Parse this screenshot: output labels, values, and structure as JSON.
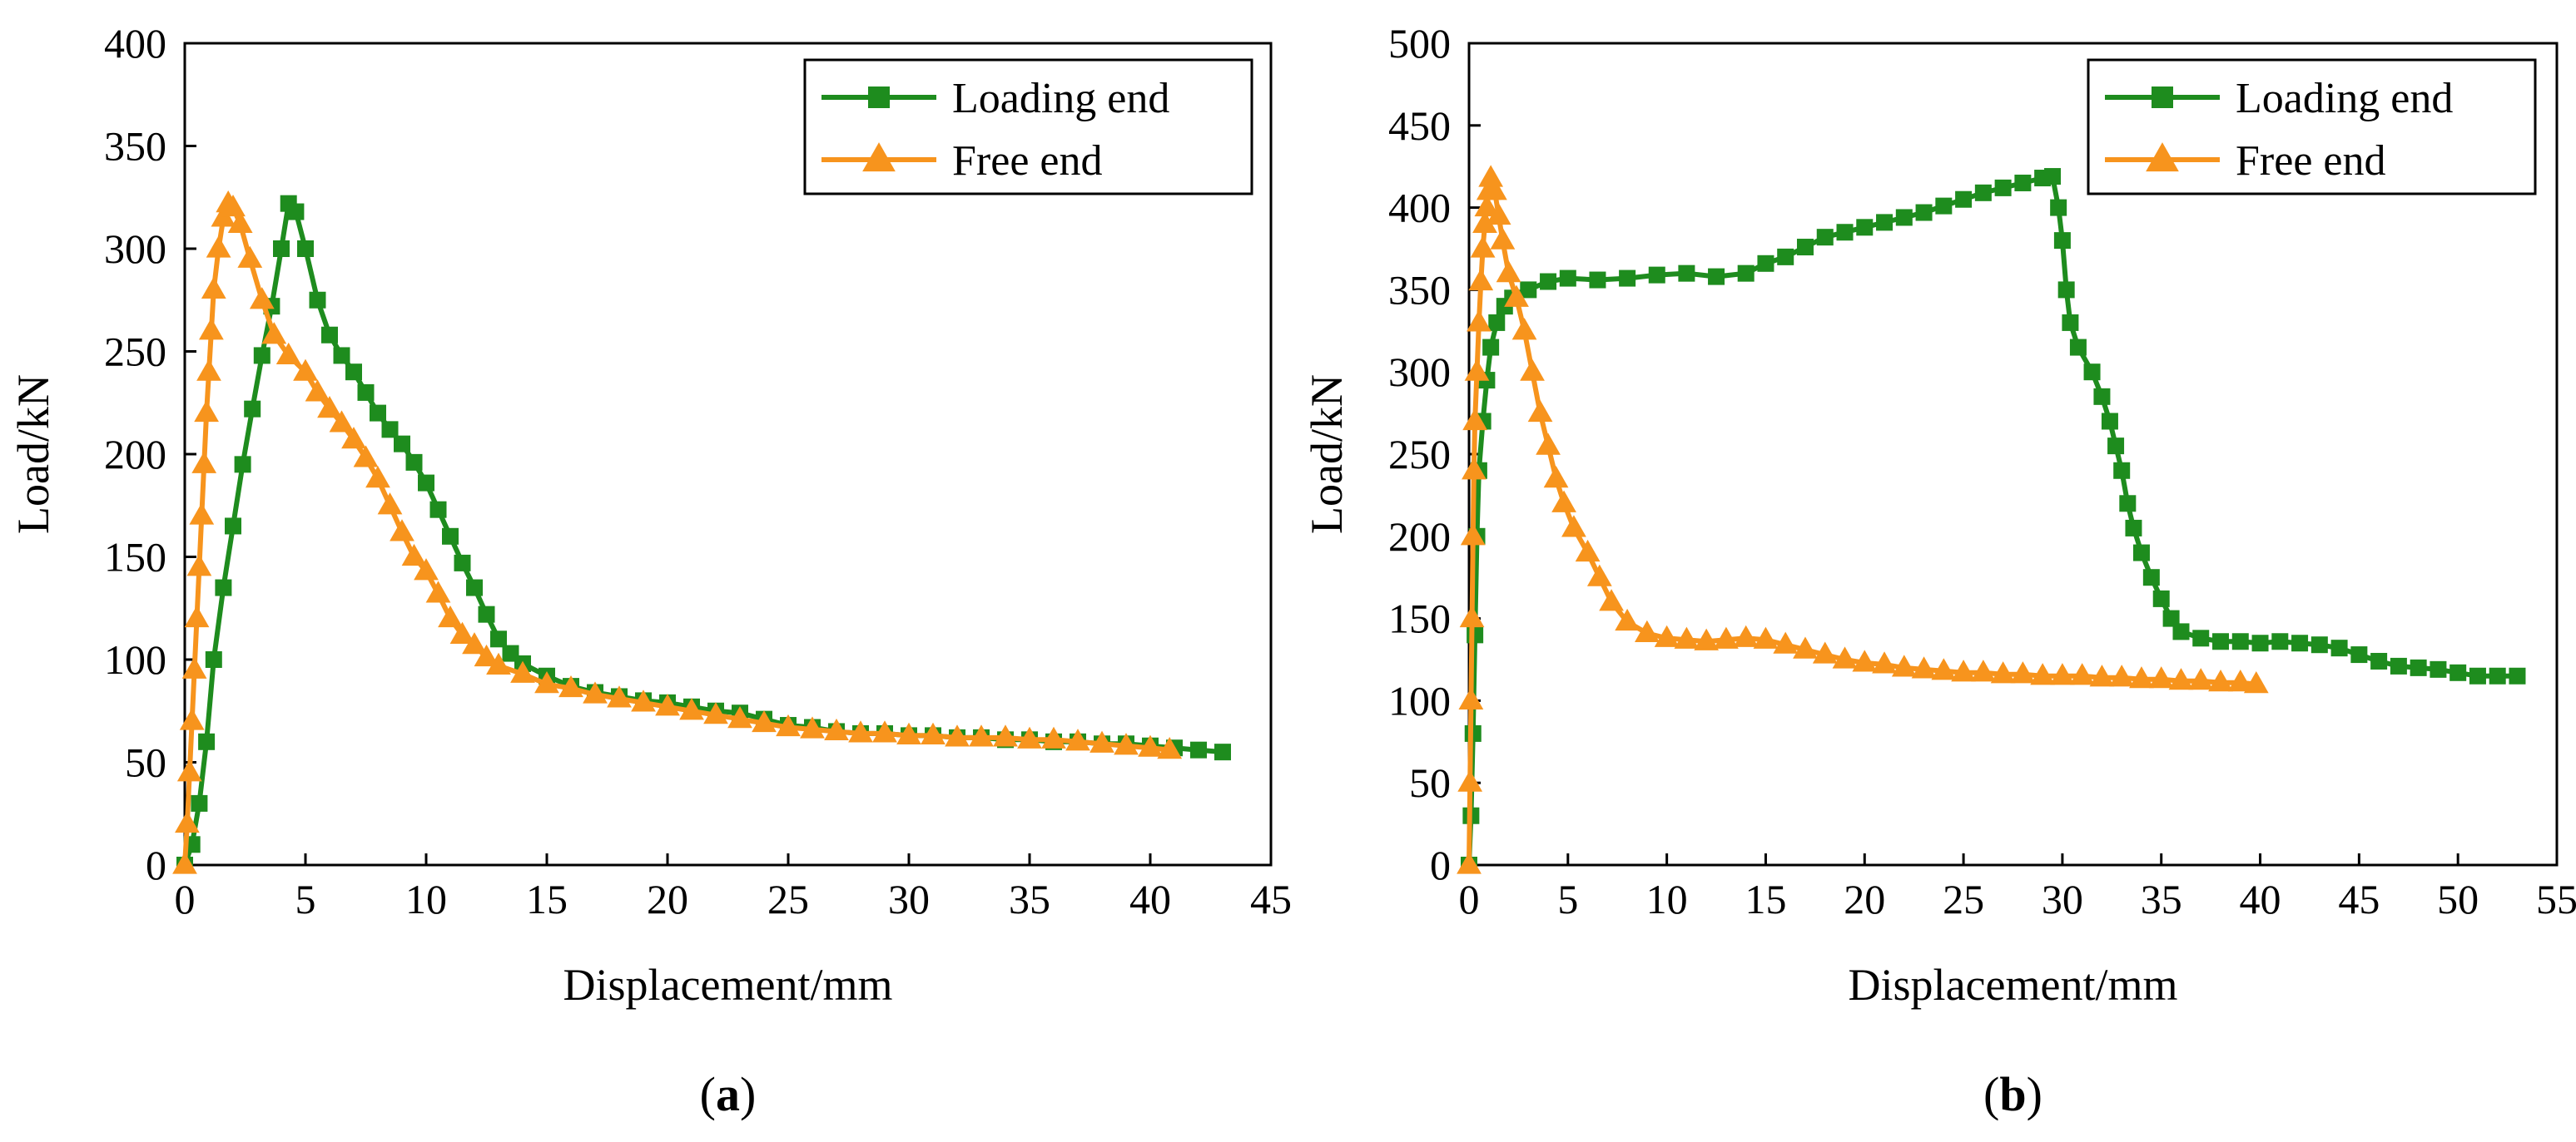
{
  "chart_data": [
    {
      "type": "line",
      "panel_label": "a",
      "xlabel": "Displacement/mm",
      "ylabel": "Load/kN",
      "xlim": [
        0,
        45
      ],
      "ylim": [
        0,
        400
      ],
      "xticks": [
        0,
        5,
        10,
        15,
        20,
        25,
        30,
        35,
        40,
        45
      ],
      "yticks": [
        0,
        50,
        100,
        150,
        200,
        250,
        300,
        350,
        400
      ],
      "grid": false,
      "legend_position": "top-right",
      "series": [
        {
          "name": "Loading end",
          "color": "#1e8c1e",
          "marker": "square",
          "points": [
            [
              0,
              0
            ],
            [
              0.3,
              10
            ],
            [
              0.6,
              30
            ],
            [
              0.9,
              60
            ],
            [
              1.2,
              100
            ],
            [
              1.6,
              135
            ],
            [
              2.0,
              165
            ],
            [
              2.4,
              195
            ],
            [
              2.8,
              222
            ],
            [
              3.2,
              248
            ],
            [
              3.6,
              272
            ],
            [
              4.0,
              300
            ],
            [
              4.3,
              322
            ],
            [
              4.6,
              318
            ],
            [
              5.0,
              300
            ],
            [
              5.5,
              275
            ],
            [
              6.0,
              258
            ],
            [
              6.5,
              248
            ],
            [
              7.0,
              240
            ],
            [
              7.5,
              230
            ],
            [
              8.0,
              220
            ],
            [
              8.5,
              212
            ],
            [
              9.0,
              205
            ],
            [
              9.5,
              196
            ],
            [
              10.0,
              186
            ],
            [
              10.5,
              173
            ],
            [
              11.0,
              160
            ],
            [
              11.5,
              147
            ],
            [
              12.0,
              135
            ],
            [
              12.5,
              122
            ],
            [
              13.0,
              110
            ],
            [
              13.5,
              103
            ],
            [
              14.0,
              98
            ],
            [
              15.0,
              92
            ],
            [
              16.0,
              87
            ],
            [
              17.0,
              84
            ],
            [
              18.0,
              82
            ],
            [
              19.0,
              80
            ],
            [
              20.0,
              79
            ],
            [
              21.0,
              77
            ],
            [
              22.0,
              75
            ],
            [
              23.0,
              74
            ],
            [
              24.0,
              71
            ],
            [
              25.0,
              68
            ],
            [
              26.0,
              67
            ],
            [
              27.0,
              65
            ],
            [
              28.0,
              64
            ],
            [
              29.0,
              64
            ],
            [
              30.0,
              63
            ],
            [
              31.0,
              63
            ],
            [
              32.0,
              62
            ],
            [
              33.0,
              62
            ],
            [
              34.0,
              61
            ],
            [
              35.0,
              61
            ],
            [
              36.0,
              60
            ],
            [
              37.0,
              60
            ],
            [
              38.0,
              59
            ],
            [
              39.0,
              59
            ],
            [
              40.0,
              58
            ],
            [
              41.0,
              57
            ],
            [
              42.0,
              56
            ],
            [
              43.0,
              55
            ]
          ]
        },
        {
          "name": "Free end",
          "color": "#f7941d",
          "marker": "triangle",
          "points": [
            [
              0,
              0
            ],
            [
              0.1,
              20
            ],
            [
              0.2,
              45
            ],
            [
              0.3,
              70
            ],
            [
              0.4,
              95
            ],
            [
              0.5,
              120
            ],
            [
              0.6,
              145
            ],
            [
              0.7,
              170
            ],
            [
              0.8,
              195
            ],
            [
              0.9,
              220
            ],
            [
              1.0,
              240
            ],
            [
              1.1,
              260
            ],
            [
              1.2,
              280
            ],
            [
              1.4,
              300
            ],
            [
              1.6,
              315
            ],
            [
              1.8,
              322
            ],
            [
              2.0,
              320
            ],
            [
              2.3,
              312
            ],
            [
              2.7,
              295
            ],
            [
              3.2,
              275
            ],
            [
              3.7,
              258
            ],
            [
              4.3,
              248
            ],
            [
              5.0,
              240
            ],
            [
              5.5,
              230
            ],
            [
              6.0,
              222
            ],
            [
              6.5,
              215
            ],
            [
              7.0,
              207
            ],
            [
              7.5,
              198
            ],
            [
              8.0,
              188
            ],
            [
              8.5,
              175
            ],
            [
              9.0,
              162
            ],
            [
              9.5,
              150
            ],
            [
              10.0,
              143
            ],
            [
              10.5,
              132
            ],
            [
              11.0,
              120
            ],
            [
              11.5,
              112
            ],
            [
              12.0,
              107
            ],
            [
              12.5,
              101
            ],
            [
              13.0,
              97
            ],
            [
              14.0,
              93
            ],
            [
              15.0,
              88
            ],
            [
              16.0,
              86
            ],
            [
              17.0,
              83
            ],
            [
              18.0,
              81
            ],
            [
              19.0,
              79
            ],
            [
              20.0,
              77
            ],
            [
              21.0,
              75
            ],
            [
              22.0,
              73
            ],
            [
              23.0,
              71
            ],
            [
              24.0,
              69
            ],
            [
              25.0,
              67
            ],
            [
              26.0,
              66
            ],
            [
              27.0,
              65
            ],
            [
              28.0,
              64
            ],
            [
              29.0,
              64
            ],
            [
              30.0,
              63
            ],
            [
              31.0,
              63
            ],
            [
              32.0,
              62
            ],
            [
              33.0,
              62
            ],
            [
              34.0,
              62
            ],
            [
              35.0,
              61
            ],
            [
              36.0,
              61
            ],
            [
              37.0,
              60
            ],
            [
              38.0,
              59
            ],
            [
              39.0,
              58
            ],
            [
              40.0,
              57
            ],
            [
              40.8,
              56
            ]
          ]
        }
      ]
    },
    {
      "type": "line",
      "panel_label": "b",
      "xlabel": "Displacement/mm",
      "ylabel": "Load/kN",
      "xlim": [
        0,
        55
      ],
      "ylim": [
        0,
        500
      ],
      "xticks": [
        0,
        5,
        10,
        15,
        20,
        25,
        30,
        35,
        40,
        45,
        50,
        55
      ],
      "yticks": [
        0,
        50,
        100,
        150,
        200,
        250,
        300,
        350,
        400,
        450,
        500
      ],
      "grid": false,
      "legend_position": "top-right",
      "series": [
        {
          "name": "Loading end",
          "color": "#1e8c1e",
          "marker": "square",
          "points": [
            [
              0,
              0
            ],
            [
              0.1,
              30
            ],
            [
              0.2,
              80
            ],
            [
              0.3,
              140
            ],
            [
              0.4,
              200
            ],
            [
              0.5,
              240
            ],
            [
              0.7,
              270
            ],
            [
              0.9,
              295
            ],
            [
              1.1,
              315
            ],
            [
              1.4,
              330
            ],
            [
              1.8,
              340
            ],
            [
              2.2,
              345
            ],
            [
              3.0,
              350
            ],
            [
              4.0,
              355
            ],
            [
              5.0,
              357
            ],
            [
              6.5,
              356
            ],
            [
              8.0,
              357
            ],
            [
              9.5,
              359
            ],
            [
              11.0,
              360
            ],
            [
              12.5,
              358
            ],
            [
              14.0,
              360
            ],
            [
              15.0,
              366
            ],
            [
              16.0,
              370
            ],
            [
              17.0,
              376
            ],
            [
              18.0,
              382
            ],
            [
              19.0,
              385
            ],
            [
              20.0,
              388
            ],
            [
              21.0,
              391
            ],
            [
              22.0,
              394
            ],
            [
              23.0,
              397
            ],
            [
              24.0,
              401
            ],
            [
              25.0,
              405
            ],
            [
              26.0,
              409
            ],
            [
              27.0,
              412
            ],
            [
              28.0,
              415
            ],
            [
              29.0,
              418
            ],
            [
              29.5,
              419
            ],
            [
              29.8,
              400
            ],
            [
              30.0,
              380
            ],
            [
              30.2,
              350
            ],
            [
              30.4,
              330
            ],
            [
              30.8,
              315
            ],
            [
              31.5,
              300
            ],
            [
              32.0,
              285
            ],
            [
              32.4,
              270
            ],
            [
              32.7,
              255
            ],
            [
              33.0,
              240
            ],
            [
              33.3,
              220
            ],
            [
              33.6,
              205
            ],
            [
              34.0,
              190
            ],
            [
              34.5,
              175
            ],
            [
              35.0,
              162
            ],
            [
              35.5,
              150
            ],
            [
              36.0,
              142
            ],
            [
              37.0,
              138
            ],
            [
              38.0,
              136
            ],
            [
              39.0,
              136
            ],
            [
              40.0,
              135
            ],
            [
              41.0,
              136
            ],
            [
              42.0,
              135
            ],
            [
              43.0,
              134
            ],
            [
              44.0,
              132
            ],
            [
              45.0,
              128
            ],
            [
              46.0,
              124
            ],
            [
              47.0,
              121
            ],
            [
              48.0,
              120
            ],
            [
              49.0,
              119
            ],
            [
              50.0,
              117
            ],
            [
              51.0,
              115
            ],
            [
              52.0,
              115
            ],
            [
              53.0,
              115
            ]
          ]
        },
        {
          "name": "Free end",
          "color": "#f7941d",
          "marker": "triangle",
          "points": [
            [
              0,
              0
            ],
            [
              0.05,
              50
            ],
            [
              0.1,
              100
            ],
            [
              0.15,
              150
            ],
            [
              0.2,
              200
            ],
            [
              0.25,
              240
            ],
            [
              0.3,
              270
            ],
            [
              0.4,
              300
            ],
            [
              0.5,
              330
            ],
            [
              0.6,
              355
            ],
            [
              0.7,
              375
            ],
            [
              0.8,
              390
            ],
            [
              0.9,
              400
            ],
            [
              1.0,
              410
            ],
            [
              1.1,
              418
            ],
            [
              1.3,
              410
            ],
            [
              1.5,
              395
            ],
            [
              1.7,
              380
            ],
            [
              2.0,
              360
            ],
            [
              2.4,
              345
            ],
            [
              2.8,
              325
            ],
            [
              3.2,
              300
            ],
            [
              3.6,
              275
            ],
            [
              4.0,
              255
            ],
            [
              4.4,
              235
            ],
            [
              4.8,
              220
            ],
            [
              5.3,
              205
            ],
            [
              6.0,
              190
            ],
            [
              6.6,
              175
            ],
            [
              7.2,
              160
            ],
            [
              8.0,
              148
            ],
            [
              9.0,
              141
            ],
            [
              10.0,
              138
            ],
            [
              11.0,
              137
            ],
            [
              12.0,
              136
            ],
            [
              13.0,
              137
            ],
            [
              14.0,
              138
            ],
            [
              15.0,
              137
            ],
            [
              16.0,
              134
            ],
            [
              17.0,
              131
            ],
            [
              18.0,
              128
            ],
            [
              19.0,
              125
            ],
            [
              20.0,
              123
            ],
            [
              21.0,
              122
            ],
            [
              22.0,
              120
            ],
            [
              23.0,
              119
            ],
            [
              24.0,
              118
            ],
            [
              25.0,
              117
            ],
            [
              26.0,
              117
            ],
            [
              27.0,
              116
            ],
            [
              28.0,
              116
            ],
            [
              29.0,
              115
            ],
            [
              30.0,
              115
            ],
            [
              31.0,
              115
            ],
            [
              32.0,
              114
            ],
            [
              33.0,
              114
            ],
            [
              34.0,
              113
            ],
            [
              35.0,
              113
            ],
            [
              36.0,
              112
            ],
            [
              37.0,
              112
            ],
            [
              38.0,
              111
            ],
            [
              39.0,
              111
            ],
            [
              39.8,
              110
            ]
          ]
        }
      ]
    }
  ]
}
